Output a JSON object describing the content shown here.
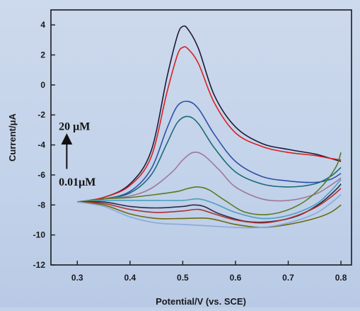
{
  "chart_data": {
    "type": "line",
    "title": "",
    "xlabel": "Potential/V (vs. SCE)",
    "ylabel": "Current/μA",
    "xlim": [
      0.25,
      0.82
    ],
    "ylim": [
      -12,
      5
    ],
    "xticks": [
      0.3,
      0.4,
      0.5,
      0.6,
      0.7,
      0.8
    ],
    "yticks": [
      4,
      2,
      0,
      -2,
      -4,
      -6,
      -8,
      -10,
      -12
    ],
    "xtick_labels": [
      "0.3",
      "0.4",
      "0.5",
      "0.6",
      "0.7",
      "0.8"
    ],
    "ytick_labels": [
      "4",
      "2",
      "0",
      "-2",
      "-4",
      "-6",
      "-8",
      "-10",
      "-12"
    ],
    "grid": false,
    "legend": "none",
    "annotations": [
      {
        "text": "20 μM",
        "x": 0.265,
        "y": -3.0
      },
      {
        "text": "0.01μM",
        "x": 0.265,
        "y": -6.7
      }
    ],
    "arrow": {
      "from": [
        0.28,
        -5.6
      ],
      "to": [
        0.28,
        -3.6
      ]
    },
    "series": [
      {
        "color": "#1d1a3a",
        "points": [
          [
            0.3,
            -7.8
          ],
          [
            0.35,
            -7.5
          ],
          [
            0.4,
            -6.6
          ],
          [
            0.44,
            -4.4
          ],
          [
            0.47,
            0.5
          ],
          [
            0.49,
            3.3
          ],
          [
            0.5,
            3.9
          ],
          [
            0.51,
            3.7
          ],
          [
            0.53,
            2.4
          ],
          [
            0.56,
            -0.7
          ],
          [
            0.6,
            -2.8
          ],
          [
            0.65,
            -3.9
          ],
          [
            0.7,
            -4.3
          ],
          [
            0.75,
            -4.6
          ],
          [
            0.78,
            -4.9
          ],
          [
            0.8,
            -5.1
          ]
        ]
      },
      {
        "color": "#d82020",
        "points": [
          [
            0.3,
            -7.8
          ],
          [
            0.35,
            -7.5
          ],
          [
            0.4,
            -6.7
          ],
          [
            0.44,
            -4.8
          ],
          [
            0.47,
            -0.5
          ],
          [
            0.49,
            2.0
          ],
          [
            0.5,
            2.5
          ],
          [
            0.51,
            2.4
          ],
          [
            0.53,
            1.4
          ],
          [
            0.56,
            -1.2
          ],
          [
            0.6,
            -3.2
          ],
          [
            0.65,
            -4.1
          ],
          [
            0.7,
            -4.5
          ],
          [
            0.75,
            -4.7
          ],
          [
            0.78,
            -4.9
          ],
          [
            0.8,
            -5.0
          ]
        ]
      },
      {
        "color": "#3050a8",
        "points": [
          [
            0.3,
            -7.8
          ],
          [
            0.35,
            -7.6
          ],
          [
            0.4,
            -7.1
          ],
          [
            0.44,
            -5.6
          ],
          [
            0.47,
            -2.9
          ],
          [
            0.49,
            -1.4
          ],
          [
            0.51,
            -1.1
          ],
          [
            0.53,
            -1.6
          ],
          [
            0.56,
            -3.3
          ],
          [
            0.6,
            -5.1
          ],
          [
            0.65,
            -6.1
          ],
          [
            0.7,
            -6.4
          ],
          [
            0.75,
            -6.5
          ],
          [
            0.78,
            -6.3
          ],
          [
            0.8,
            -5.9
          ]
        ]
      },
      {
        "color": "#1a6a7a",
        "points": [
          [
            0.3,
            -7.8
          ],
          [
            0.35,
            -7.6
          ],
          [
            0.4,
            -7.2
          ],
          [
            0.44,
            -6.0
          ],
          [
            0.47,
            -3.9
          ],
          [
            0.49,
            -2.5
          ],
          [
            0.51,
            -2.1
          ],
          [
            0.53,
            -2.6
          ],
          [
            0.56,
            -4.2
          ],
          [
            0.6,
            -5.8
          ],
          [
            0.65,
            -6.6
          ],
          [
            0.7,
            -6.8
          ],
          [
            0.75,
            -6.6
          ],
          [
            0.78,
            -6.1
          ],
          [
            0.8,
            -5.5
          ]
        ]
      },
      {
        "color": "#a07898",
        "points": [
          [
            0.3,
            -7.8
          ],
          [
            0.35,
            -7.6
          ],
          [
            0.4,
            -7.4
          ],
          [
            0.44,
            -6.9
          ],
          [
            0.48,
            -5.8
          ],
          [
            0.5,
            -5.0
          ],
          [
            0.52,
            -4.5
          ],
          [
            0.54,
            -4.7
          ],
          [
            0.57,
            -5.7
          ],
          [
            0.6,
            -6.8
          ],
          [
            0.65,
            -7.6
          ],
          [
            0.7,
            -7.7
          ],
          [
            0.75,
            -7.3
          ],
          [
            0.78,
            -6.7
          ],
          [
            0.8,
            -6.2
          ]
        ]
      },
      {
        "color": "#5a7a20",
        "points": [
          [
            0.3,
            -7.8
          ],
          [
            0.35,
            -7.6
          ],
          [
            0.4,
            -7.5
          ],
          [
            0.45,
            -7.3
          ],
          [
            0.49,
            -7.1
          ],
          [
            0.51,
            -6.9
          ],
          [
            0.53,
            -6.8
          ],
          [
            0.55,
            -7.0
          ],
          [
            0.58,
            -7.7
          ],
          [
            0.62,
            -8.5
          ],
          [
            0.67,
            -8.6
          ],
          [
            0.72,
            -8.0
          ],
          [
            0.76,
            -6.9
          ],
          [
            0.79,
            -5.5
          ],
          [
            0.8,
            -4.5
          ]
        ]
      },
      {
        "color": "#4aa0c0",
        "points": [
          [
            0.3,
            -7.8
          ],
          [
            0.35,
            -7.7
          ],
          [
            0.4,
            -7.7
          ],
          [
            0.45,
            -7.7
          ],
          [
            0.5,
            -7.7
          ],
          [
            0.53,
            -7.6
          ],
          [
            0.56,
            -7.9
          ],
          [
            0.6,
            -8.5
          ],
          [
            0.65,
            -8.9
          ],
          [
            0.7,
            -8.7
          ],
          [
            0.75,
            -8.0
          ],
          [
            0.78,
            -7.1
          ],
          [
            0.8,
            -6.3
          ]
        ]
      },
      {
        "color": "#2a2a4a",
        "points": [
          [
            0.3,
            -7.8
          ],
          [
            0.35,
            -7.8
          ],
          [
            0.4,
            -8.1
          ],
          [
            0.45,
            -8.2
          ],
          [
            0.5,
            -8.1
          ],
          [
            0.52,
            -8.0
          ],
          [
            0.54,
            -8.1
          ],
          [
            0.57,
            -8.6
          ],
          [
            0.62,
            -9.1
          ],
          [
            0.67,
            -9.1
          ],
          [
            0.72,
            -8.7
          ],
          [
            0.76,
            -7.9
          ],
          [
            0.79,
            -7.0
          ],
          [
            0.8,
            -6.6
          ]
        ]
      },
      {
        "color": "#b03030",
        "points": [
          [
            0.3,
            -7.8
          ],
          [
            0.35,
            -7.9
          ],
          [
            0.4,
            -8.3
          ],
          [
            0.45,
            -8.5
          ],
          [
            0.5,
            -8.4
          ],
          [
            0.53,
            -8.3
          ],
          [
            0.56,
            -8.6
          ],
          [
            0.6,
            -9.0
          ],
          [
            0.65,
            -9.2
          ],
          [
            0.7,
            -8.9
          ],
          [
            0.75,
            -8.2
          ],
          [
            0.78,
            -7.5
          ],
          [
            0.8,
            -6.9
          ]
        ]
      },
      {
        "color": "#6a6a10",
        "points": [
          [
            0.3,
            -7.8
          ],
          [
            0.35,
            -8.0
          ],
          [
            0.4,
            -8.6
          ],
          [
            0.45,
            -8.9
          ],
          [
            0.5,
            -8.9
          ],
          [
            0.55,
            -8.9
          ],
          [
            0.6,
            -9.3
          ],
          [
            0.65,
            -9.5
          ],
          [
            0.7,
            -9.3
          ],
          [
            0.75,
            -8.9
          ],
          [
            0.78,
            -8.5
          ],
          [
            0.8,
            -8.0
          ]
        ]
      },
      {
        "color": "#8aaad8",
        "points": [
          [
            0.3,
            -7.8
          ],
          [
            0.35,
            -8.1
          ],
          [
            0.4,
            -8.8
          ],
          [
            0.45,
            -9.2
          ],
          [
            0.5,
            -9.3
          ],
          [
            0.55,
            -9.4
          ],
          [
            0.6,
            -9.5
          ],
          [
            0.65,
            -9.5
          ],
          [
            0.7,
            -9.2
          ],
          [
            0.75,
            -8.6
          ],
          [
            0.78,
            -7.9
          ],
          [
            0.8,
            -7.3
          ]
        ]
      }
    ]
  }
}
